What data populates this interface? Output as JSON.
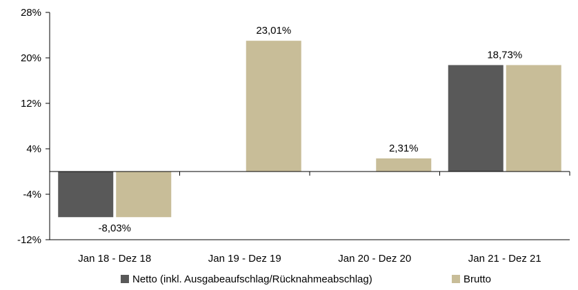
{
  "chart_data": {
    "type": "bar",
    "title": "",
    "xlabel": "",
    "ylabel": "",
    "categories": [
      "Jan 18 - Dez 18",
      "Jan 19 - Dez 19",
      "Jan 20 - Dez 20",
      "Jan 21 - Dez 21"
    ],
    "series": [
      {
        "name": "Netto (inkl. Ausgabeaufschlag/Rücknahmeabschlag)",
        "color": "#595959",
        "values": [
          -8.03,
          null,
          null,
          18.73
        ]
      },
      {
        "name": "Brutto",
        "color": "#c8bd98",
        "values": [
          -8.03,
          23.01,
          2.31,
          18.73
        ]
      }
    ],
    "data_labels": [
      "-8,03%",
      "23,01%",
      "2,31%",
      "18,73%"
    ],
    "data_label_values": [
      -8.03,
      23.01,
      2.31,
      18.73
    ],
    "yticks": [
      28,
      20,
      12,
      4,
      -4,
      -12
    ],
    "ytick_labels": [
      "28%",
      "20%",
      "12%",
      "4%",
      "-4%",
      "-12%"
    ],
    "ylim": [
      -12,
      28
    ],
    "grid": false,
    "legend_position": "bottom"
  }
}
